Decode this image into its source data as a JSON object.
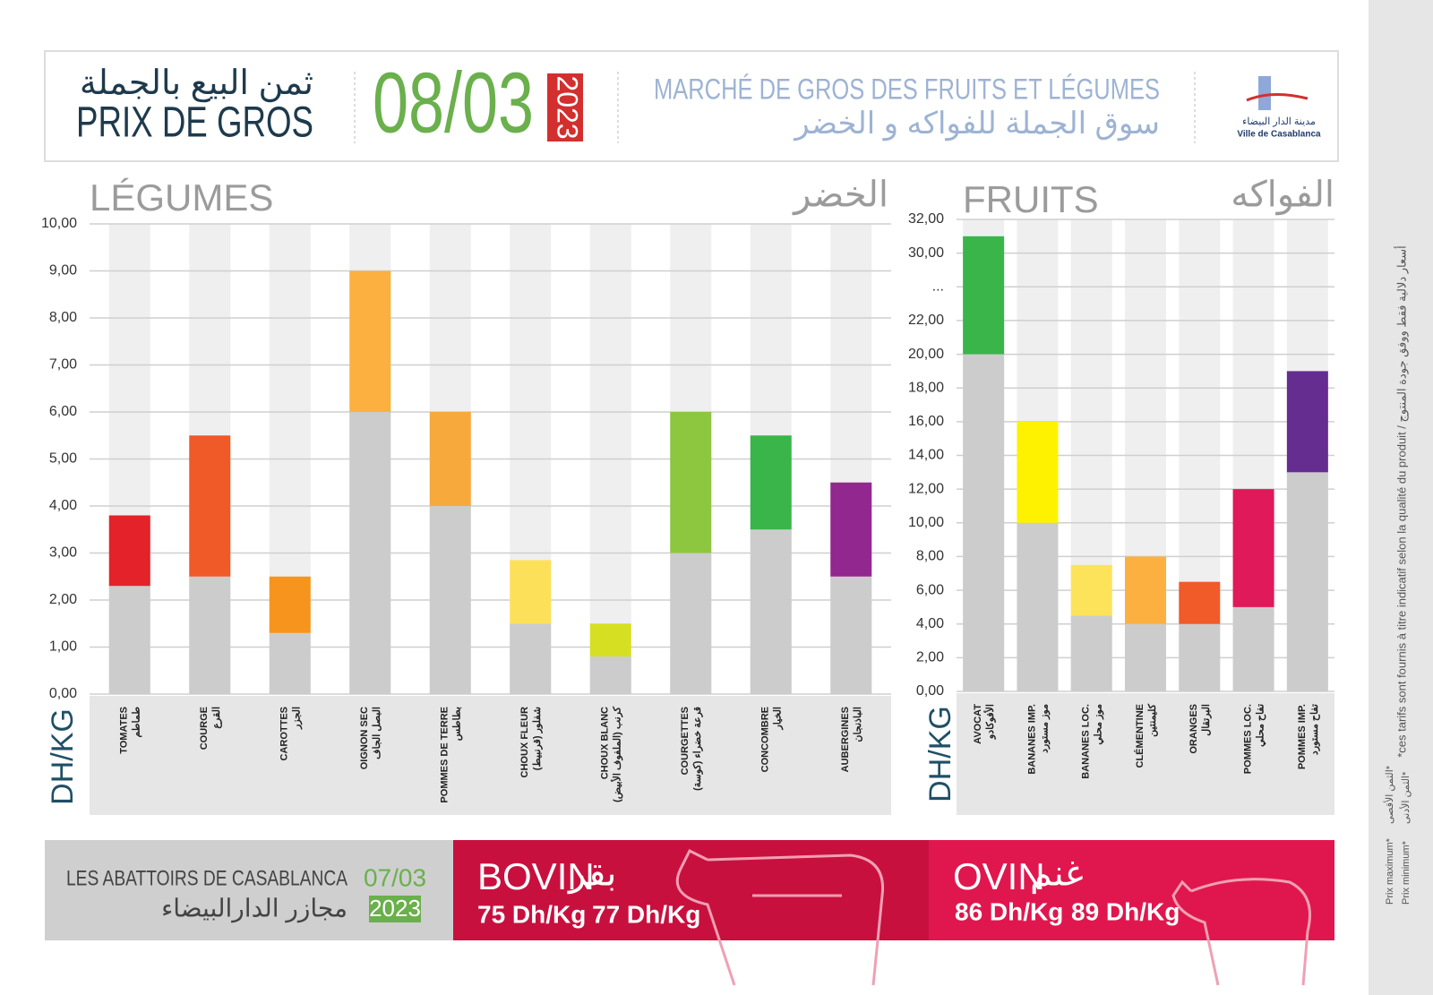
{
  "header": {
    "title_ar": "ثمن البيع بالجملة",
    "title_fr": "PRIX DE GROS",
    "date": "08/03",
    "year": "2023",
    "market_fr": "MARCHÉ DE GROS DES FRUITS ET LÉGUMES",
    "market_ar": "سوق الجملة للفواكه و الخضر",
    "logo_ar": "مدينة الدار البيضاء",
    "logo_fr": "Ville de Casablanca"
  },
  "chart_data": [
    {
      "type": "range_bar",
      "title": "LÉGUMES",
      "title_ar": "الخضر",
      "unit": "DH/KG",
      "categories": [
        "TOMATES",
        "COURGE",
        "CAROTTES",
        "OIGNON SEC",
        "POMMES DE TERRE",
        "CHOUX FLEUR",
        "CHOUX BLANC",
        "COURGETTES",
        "CONCOMBRE",
        "AUBERGINES"
      ],
      "categories_ar": [
        "طماطم",
        "القرع",
        "الجزر",
        "البصل الجاف",
        "بطاطس",
        "شفلور (قرنبيط)",
        "كرنب (الملفوف الأبيض)",
        "قرعة خضراء (كوسة)",
        "الخيار",
        "الباذنجان"
      ],
      "series": [
        {
          "color": "#cccccc",
          "values": [
            2.3,
            2.5,
            1.3,
            6,
            4,
            1.5,
            0.8,
            3,
            3.5,
            2.5
          ]
        },
        {
          "colors": [
            "#e32229",
            "#f05a28",
            "#f7941d",
            "#fbb040",
            "#f8a93b",
            "#fde05a",
            "#d7df23",
            "#8dc63f",
            "#39b54a",
            "#92278f"
          ],
          "values": [
            3.8,
            5.5,
            2.5,
            9,
            6,
            2.85,
            1.5,
            6,
            5.5,
            4.5
          ]
        }
      ],
      "ylim": [
        0,
        10
      ],
      "yticks": [
        {
          "value": 0,
          "label": "0,00"
        },
        {
          "value": 1,
          "label": "1,00"
        },
        {
          "value": 2,
          "label": "2,00"
        },
        {
          "value": 3,
          "label": "3,00"
        },
        {
          "value": 4,
          "label": "4,00"
        },
        {
          "value": 5,
          "label": "5,00"
        },
        {
          "value": 6,
          "label": "6,00"
        },
        {
          "value": 7,
          "label": "7,00"
        },
        {
          "value": 8,
          "label": "8,00"
        },
        {
          "value": 9,
          "label": "9,00"
        },
        {
          "value": 10,
          "label": "10,00"
        }
      ],
      "grid": true
    },
    {
      "type": "range_bar",
      "title": "FRUITS",
      "title_ar": "الفواكه",
      "unit": "DH/KG",
      "categories": [
        "AVOCAT",
        "BANANES IMP.",
        "BANANES LOC.",
        "CLÉMENTINE",
        "ORANGES",
        "POMMES LOC.",
        "POMMES IMP."
      ],
      "categories_ar": [
        "الأفوكادو",
        "موز مستورد",
        "موز محلي",
        "كليمنتين",
        "البرتقال",
        "تفاح محلي",
        "تفاح مستورد"
      ],
      "series": [
        {
          "color": "#cccccc",
          "values": [
            20,
            10,
            4.5,
            4,
            4,
            5,
            13
          ]
        },
        {
          "colors": [
            "#39b54a",
            "#fff200",
            "#fde35a",
            "#fbb040",
            "#f15a29",
            "#e0195a",
            "#662d91"
          ],
          "values": [
            31,
            16,
            7.5,
            8,
            6.5,
            12,
            19
          ]
        }
      ],
      "ylim": [
        0,
        32
      ],
      "yticks": [
        {
          "value": 0,
          "label": "0,00"
        },
        {
          "value": 2,
          "label": "2,00"
        },
        {
          "value": 4,
          "label": "4,00"
        },
        {
          "value": 6,
          "label": "6,00"
        },
        {
          "value": 8,
          "label": "8,00"
        },
        {
          "value": 10,
          "label": "10,00"
        },
        {
          "value": 12,
          "label": "12,00"
        },
        {
          "value": 14,
          "label": "14,00"
        },
        {
          "value": 16,
          "label": "16,00"
        },
        {
          "value": 18,
          "label": "18,00"
        },
        {
          "value": 20,
          "label": "20,00"
        },
        {
          "value": 22,
          "label": "22,00"
        },
        {
          "value": 26,
          "label": "..."
        },
        {
          "value": 30,
          "label": "30,00"
        },
        {
          "value": 32,
          "label": "32,00"
        }
      ],
      "grid": true
    }
  ],
  "meat": {
    "title_fr": "LES ABATTOIRS DE CASABLANCA",
    "title_ar": "مجازر الدارالبيضاء",
    "date": "07/03",
    "year": "2023",
    "bovin": {
      "name_fr": "BOVIN",
      "name_ar": "بقر",
      "min": "75 Dh/Kg",
      "max": "77 Dh/Kg"
    },
    "ovin": {
      "name_fr": "OVIN",
      "name_ar": "غنم",
      "min": "86 Dh/Kg",
      "max": "89 Dh/Kg"
    }
  },
  "side": {
    "note": "*ces tarifs sont fournis à titre indicatif selon la qualité du produit / أسعار دلالية فقط ووفق جودة المنتوج",
    "max_fr": "Prix maximum*",
    "min_fr": "Prix minimum*",
    "max_ar": "الثمن الأقصى*",
    "min_ar": "الثمن الأدنى*"
  }
}
